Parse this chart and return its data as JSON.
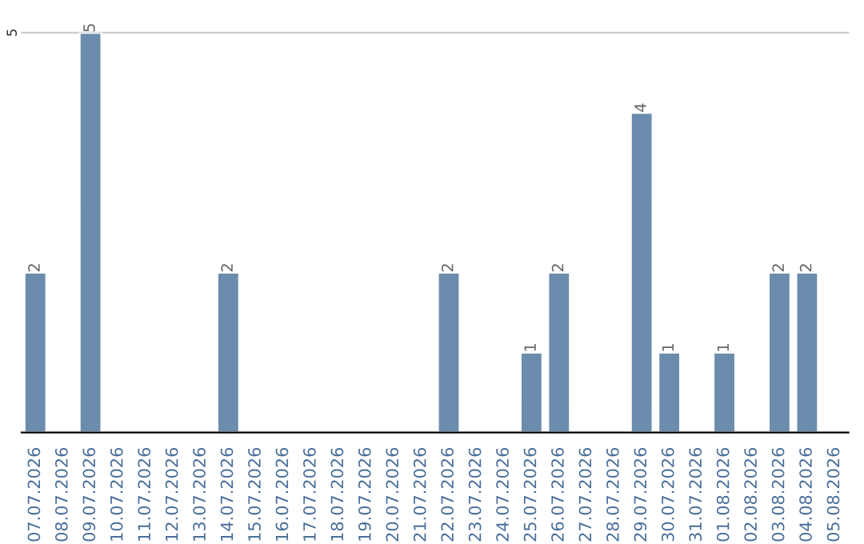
{
  "chart_data": {
    "type": "bar",
    "categories": [
      "07.07.2026",
      "08.07.2026",
      "09.07.2026",
      "10.07.2026",
      "11.07.2026",
      "12.07.2026",
      "13.07.2026",
      "14.07.2026",
      "15.07.2026",
      "16.07.2026",
      "17.07.2026",
      "18.07.2026",
      "19.07.2026",
      "20.07.2026",
      "21.07.2026",
      "22.07.2026",
      "23.07.2026",
      "24.07.2026",
      "25.07.2026",
      "26.07.2026",
      "27.07.2026",
      "28.07.2026",
      "29.07.2026",
      "30.07.2026",
      "31.07.2026",
      "01.08.2026",
      "02.08.2026",
      "03.08.2026",
      "04.08.2026",
      "05.08.2026"
    ],
    "values": [
      2,
      null,
      5,
      null,
      null,
      null,
      null,
      2,
      null,
      null,
      null,
      null,
      null,
      null,
      null,
      2,
      null,
      null,
      1,
      2,
      null,
      null,
      4,
      1,
      null,
      1,
      null,
      2,
      2,
      null
    ],
    "value_labels": [
      "2",
      null,
      "5",
      null,
      null,
      null,
      null,
      "2",
      null,
      null,
      null,
      null,
      null,
      null,
      null,
      "2",
      null,
      null,
      "1",
      "2",
      null,
      null,
      "4",
      "1",
      null,
      "1",
      null,
      "2",
      "2",
      null
    ],
    "color": "#6b8cad",
    "ylim": [
      0,
      5
    ],
    "yticks": [
      5
    ],
    "ref_lines": [
      {
        "axis": "y",
        "value": 5,
        "color": "#cccccc"
      }
    ]
  }
}
